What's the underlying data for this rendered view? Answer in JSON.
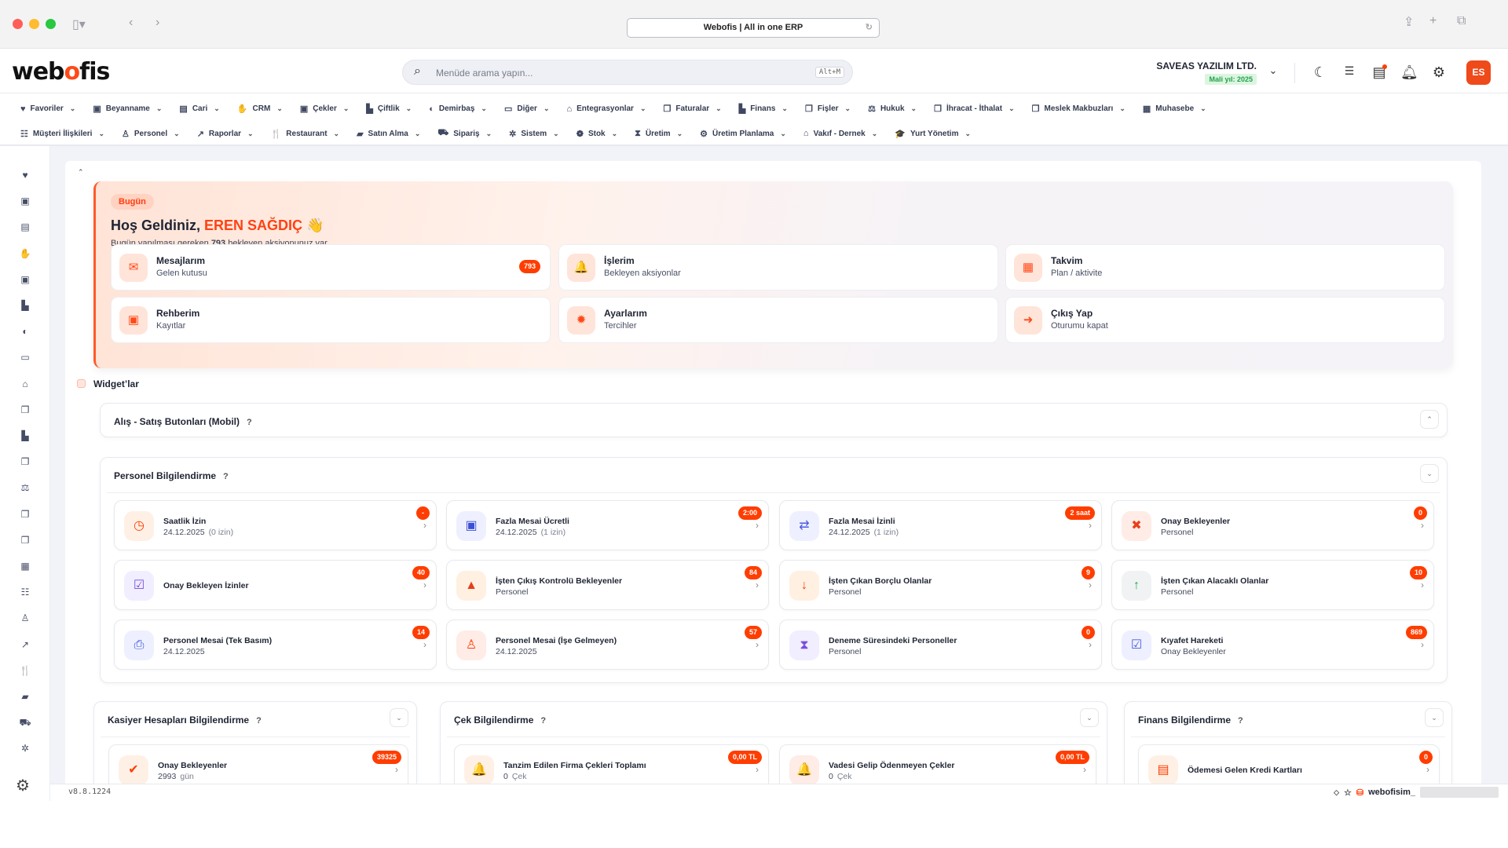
{
  "browser": {
    "title": "Webofis  | All in one ERP"
  },
  "header": {
    "logo": "webofis",
    "search_placeholder": "Menüde arama yapın...",
    "search_shortcut": "Alt+M",
    "company": "SAVEAS YAZILIM LTD.",
    "fiscal_year": "Mali yıl: 2025",
    "avatar": "ES"
  },
  "menu": {
    "row1": [
      {
        "label": "Favoriler",
        "icon": "♥"
      },
      {
        "label": "Beyanname",
        "icon": "▣"
      },
      {
        "label": "Cari",
        "icon": "▤"
      },
      {
        "label": "CRM",
        "icon": "✋"
      },
      {
        "label": "Çekler",
        "icon": "▣"
      },
      {
        "label": "Çiftlik",
        "icon": "▙"
      },
      {
        "label": "Demirbaş",
        "icon": "◐"
      },
      {
        "label": "Diğer",
        "icon": "▭"
      },
      {
        "label": "Entegrasyonlar",
        "icon": "⌂"
      },
      {
        "label": "Faturalar",
        "icon": "❐"
      },
      {
        "label": "Finans",
        "icon": "▙"
      },
      {
        "label": "Fişler",
        "icon": "❐"
      },
      {
        "label": "Hukuk",
        "icon": "⚖"
      },
      {
        "label": "İhracat - İthalat",
        "icon": "❐"
      },
      {
        "label": "Meslek Makbuzları",
        "icon": "❐"
      },
      {
        "label": "Muhasebe",
        "icon": "▦"
      }
    ],
    "row2": [
      {
        "label": "Müşteri İlişkileri",
        "icon": "☷"
      },
      {
        "label": "Personel",
        "icon": "♙"
      },
      {
        "label": "Raporlar",
        "icon": "↗"
      },
      {
        "label": "Restaurant",
        "icon": "🍴"
      },
      {
        "label": "Satın Alma",
        "icon": "▰"
      },
      {
        "label": "Sipariş",
        "icon": "⛟"
      },
      {
        "label": "Sistem",
        "icon": "✲"
      },
      {
        "label": "Stok",
        "icon": "❁"
      },
      {
        "label": "Üretim",
        "icon": "⧗"
      },
      {
        "label": "Üretim Planlama",
        "icon": "⚙"
      },
      {
        "label": "Vakıf - Dernek",
        "icon": "⌂"
      },
      {
        "label": "Yurt Yönetim",
        "icon": "🎓"
      }
    ]
  },
  "sidebar_icons": [
    "heart",
    "money",
    "id-card",
    "handshake",
    "money",
    "factory",
    "shield",
    "folder",
    "basket",
    "docs",
    "chart-area",
    "docs",
    "scale",
    "docs",
    "docs",
    "calculator",
    "users",
    "user",
    "chart-line",
    "utensils",
    "bag",
    "cart",
    "gear"
  ],
  "welcome": {
    "badge": "Bugün",
    "greeting": "Hoş Geldiniz,",
    "name": "EREN SAĞDIÇ",
    "wave": "👋",
    "sub_before": "Bugün yapılması gereken",
    "count": "793",
    "sub_after": "bekleyen aksiyonunuz var.",
    "quick": [
      {
        "title": "Mesajlarım",
        "sub": "Gelen kutusu",
        "icon": "✉",
        "badge": "793"
      },
      {
        "title": "İşlerim",
        "sub": "Bekleyen aksiyonlar",
        "icon": "🔔"
      },
      {
        "title": "Takvim",
        "sub": "Plan / aktivite",
        "icon": "▦"
      },
      {
        "title": "Rehberim",
        "sub": "Kayıtlar",
        "icon": "▣"
      },
      {
        "title": "Ayarlarım",
        "sub": "Tercihler",
        "icon": "✹"
      },
      {
        "title": "Çıkış Yap",
        "sub": "Oturumu kapat",
        "icon": "➜"
      }
    ]
  },
  "widgets": {
    "label": "Widget’lar",
    "alis_satis": {
      "title": "Alış - Satış Butonları (Mobil)",
      "help": "?",
      "toggle": "⌃"
    },
    "personel": {
      "title": "Personel Bilgilendirme",
      "help": "?",
      "toggle": "⌄",
      "cards": [
        {
          "title": "Saatlik İzin",
          "sub": "24.12.2025",
          "note": "(0 izin)",
          "badge": "-",
          "icon": "◷",
          "color": "#ff3d00",
          "bg": "#fff0e6"
        },
        {
          "title": "Fazla Mesai Ücretli",
          "sub": "24.12.2025",
          "note": "(1 izin)",
          "badge": "2:00",
          "icon": "▣",
          "color": "#3b4fd8",
          "bg": "#eef0ff"
        },
        {
          "title": "Fazla Mesai İzinli",
          "sub": "24.12.2025",
          "note": "(1 izin)",
          "badge": "2 saat",
          "icon": "⇄",
          "color": "#4b5be0",
          "bg": "#eef0ff"
        },
        {
          "title": "Onay Bekleyenler",
          "sub": "Personel",
          "badge": "0",
          "icon": "✖",
          "color": "#e8401a",
          "bg": "#ffece6"
        },
        {
          "title": "Onay Bekleyen İzinler",
          "badge": "40",
          "icon": "☑",
          "color": "#7b4de0",
          "bg": "#f0eeff"
        },
        {
          "title": "İşten Çıkış Kontrolü Bekleyenler",
          "sub": "Personel",
          "badge": "84",
          "icon": "▲",
          "color": "#e2401a",
          "bg": "#fff0e2"
        },
        {
          "title": "İşten Çıkan Borçlu Olanlar",
          "sub": "Personel",
          "badge": "9",
          "icon": "↓",
          "color": "#ff3d00",
          "bg": "#fff0e2"
        },
        {
          "title": "İşten Çıkan Alacaklı Olanlar",
          "sub": "Personel",
          "badge": "10",
          "icon": "↑",
          "color": "#22b04b",
          "bg": "#f0f2f4"
        },
        {
          "title": "Personel Mesai (Tek Basım)",
          "sub": "24.12.2025",
          "badge": "14",
          "icon": "⎙",
          "color": "#3b4fd8",
          "bg": "#eef0ff"
        },
        {
          "title": "Personel Mesai (İşe Gelmeyen)",
          "sub": "24.12.2025",
          "badge": "57",
          "icon": "♙",
          "color": "#ff3d00",
          "bg": "#ffece6"
        },
        {
          "title": "Deneme Süresindeki Personeller",
          "sub": "Personel",
          "badge": "0",
          "icon": "⧗",
          "color": "#7b4de0",
          "bg": "#f0eeff"
        },
        {
          "title": "Kıyafet Hareketi",
          "sub": "Onay Bekleyenler",
          "badge": "869",
          "icon": "☑",
          "color": "#4b5be0",
          "bg": "#eef0ff"
        }
      ]
    },
    "kasiyer": {
      "title": "Kasiyer Hesapları Bilgilendirme",
      "help": "?",
      "toggle": "⌄",
      "cards": [
        {
          "title": "Onay Bekleyenler",
          "sub": "2993",
          "note": "gün",
          "badge": "39325",
          "icon": "✔",
          "color": "#ff3d00",
          "bg": "#fff0e6"
        }
      ]
    },
    "cek": {
      "title": "Çek Bilgilendirme",
      "help": "?",
      "toggle": "⌄",
      "cards": [
        {
          "title": "Tanzim Edilen Firma Çekleri Toplamı",
          "sub": "0",
          "note": "Çek",
          "badge": "0,00 TL",
          "icon": "🔔",
          "color": "#ff3d00",
          "bg": "#fff0e6"
        },
        {
          "title": "Vadesi Gelip Ödenmeyen Çekler",
          "sub": "0",
          "note": "Çek",
          "badge": "0,00 TL",
          "icon": "🔔",
          "color": "#ff3d00",
          "bg": "#ffece6"
        }
      ]
    },
    "finans": {
      "title": "Finans Bilgilendirme",
      "help": "?",
      "toggle": "⌄",
      "cards": [
        {
          "title": "Ödemesi Gelen Kredi Kartları",
          "badge": "0",
          "icon": "▤",
          "color": "#ff3d00",
          "bg": "#fff0e6"
        }
      ]
    }
  },
  "footer": {
    "version": "v8.8.1224",
    "db_name": "webofisim_"
  },
  "colors": {
    "accent": "#ff4a17",
    "badge": "#ff3d00",
    "fiscal_green": "#22a24a"
  }
}
